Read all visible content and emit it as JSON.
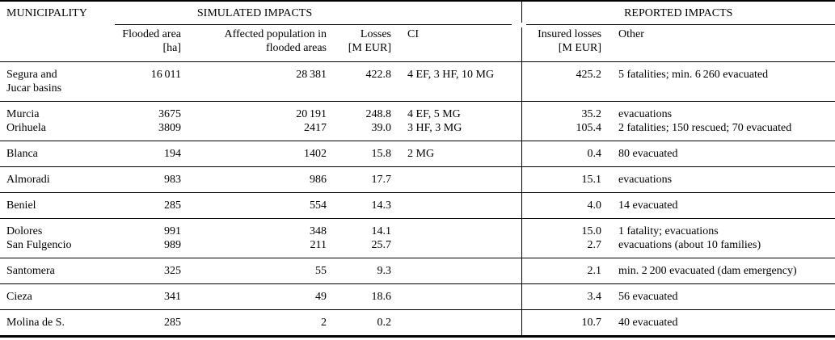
{
  "table": {
    "header": {
      "municipality": "MUNICIPALITY",
      "simulated_group": "SIMULATED IMPACTS",
      "reported_group": "REPORTED IMPACTS",
      "columns": {
        "flooded_area": [
          "Flooded area",
          "[ha]"
        ],
        "affected_population": [
          "Affected population in",
          "flooded areas"
        ],
        "losses": [
          "Losses",
          "[M EUR]"
        ],
        "ci": "CI",
        "insured_losses": [
          "Insured losses",
          "[M EUR]"
        ],
        "other": "Other"
      }
    },
    "groups": [
      {
        "rows": [
          {
            "municipality": "Segura and\nJucar basins",
            "flooded_area_ha": "16 011",
            "affected_population": "28 381",
            "losses_m_eur": "422.8",
            "ci": "4 EF, 3 HF, 10 MG",
            "insured_losses_m_eur": "425.2",
            "other": "5 fatalities; min. 6 260 evacuated"
          }
        ]
      },
      {
        "rows": [
          {
            "municipality": "Murcia",
            "flooded_area_ha": "3675",
            "affected_population": "20 191",
            "losses_m_eur": "248.8",
            "ci": "4 EF, 5 MG",
            "insured_losses_m_eur": "35.2",
            "other": "evacuations"
          },
          {
            "municipality": "Orihuela",
            "flooded_area_ha": "3809",
            "affected_population": "2417",
            "losses_m_eur": "39.0",
            "ci": "3 HF, 3 MG",
            "insured_losses_m_eur": "105.4",
            "other": "2 fatalities; 150 rescued; 70 evacuated"
          }
        ]
      },
      {
        "rows": [
          {
            "municipality": "Blanca",
            "flooded_area_ha": "194",
            "affected_population": "1402",
            "losses_m_eur": "15.8",
            "ci": "2 MG",
            "insured_losses_m_eur": "0.4",
            "other": "80 evacuated"
          }
        ]
      },
      {
        "rows": [
          {
            "municipality": "Almoradi",
            "flooded_area_ha": "983",
            "affected_population": "986",
            "losses_m_eur": "17.7",
            "ci": "",
            "insured_losses_m_eur": "15.1",
            "other": "evacuations"
          }
        ]
      },
      {
        "rows": [
          {
            "municipality": "Beniel",
            "flooded_area_ha": "285",
            "affected_population": "554",
            "losses_m_eur": "14.3",
            "ci": "",
            "insured_losses_m_eur": "4.0",
            "other": "14 evacuated"
          }
        ]
      },
      {
        "rows": [
          {
            "municipality": "Dolores",
            "flooded_area_ha": "991",
            "affected_population": "348",
            "losses_m_eur": "14.1",
            "ci": "",
            "insured_losses_m_eur": "15.0",
            "other": "1 fatality; evacuations"
          },
          {
            "municipality": "San Fulgencio",
            "flooded_area_ha": "989",
            "affected_population": "211",
            "losses_m_eur": "25.7",
            "ci": "",
            "insured_losses_m_eur": "2.7",
            "other": "evacuations (about 10 families)"
          }
        ]
      },
      {
        "rows": [
          {
            "municipality": "Santomera",
            "flooded_area_ha": "325",
            "affected_population": "55",
            "losses_m_eur": "9.3",
            "ci": "",
            "insured_losses_m_eur": "2.1",
            "other": "min. 2 200 evacuated (dam emergency)"
          }
        ]
      },
      {
        "rows": [
          {
            "municipality": "Cieza",
            "flooded_area_ha": "341",
            "affected_population": "49",
            "losses_m_eur": "18.6",
            "ci": "",
            "insured_losses_m_eur": "3.4",
            "other": "56 evacuated"
          }
        ]
      },
      {
        "rows": [
          {
            "municipality": "Molina de S.",
            "flooded_area_ha": "285",
            "affected_population": "2",
            "losses_m_eur": "0.2",
            "ci": "",
            "insured_losses_m_eur": "10.7",
            "other": "40 evacuated"
          }
        ]
      }
    ]
  }
}
